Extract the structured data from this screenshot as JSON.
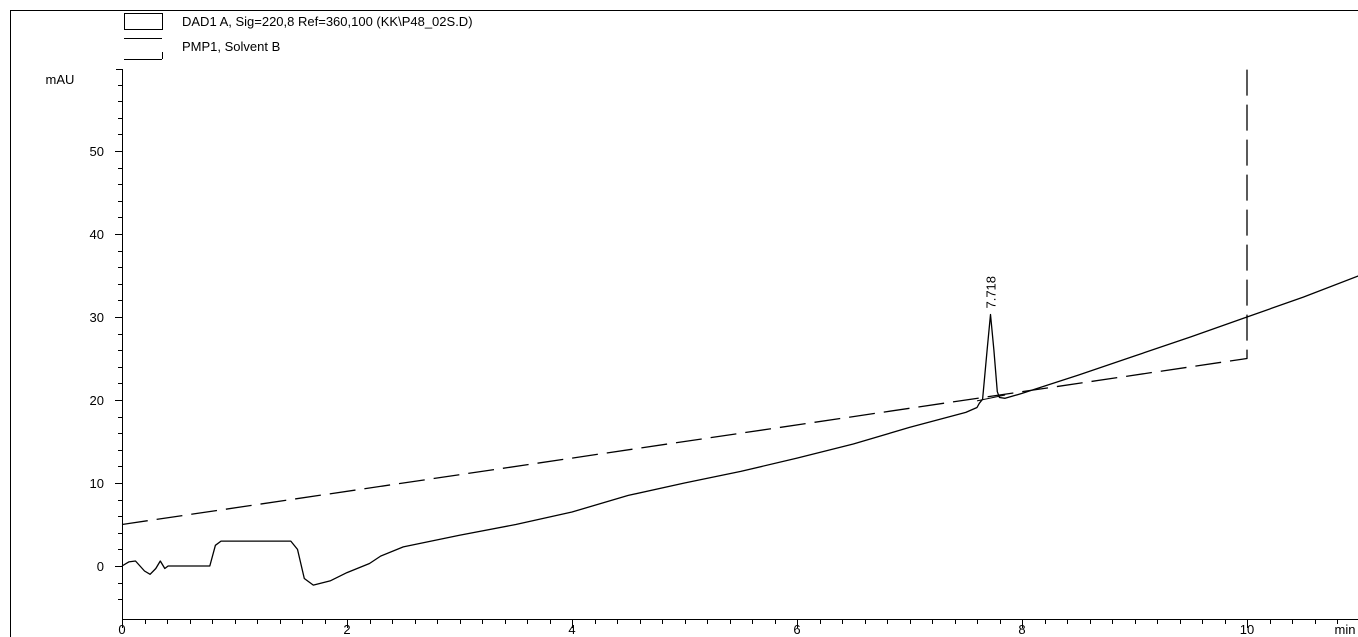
{
  "chart_data": {
    "type": "line",
    "legend": {
      "placement": "top-left",
      "entries": [
        "DAD1 A, Sig=220,8 Ref=360,100 (KK\\P48_02S.D)",
        "PMP1, Solvent B"
      ]
    },
    "ylabel": "mAU",
    "xlabel": "min",
    "xlim": [
      0,
      11
    ],
    "ylim": [
      -5,
      60
    ],
    "x_ticks": [
      "0",
      "2",
      "4",
      "6",
      "8",
      "10"
    ],
    "y_ticks": [
      "0",
      "10",
      "20",
      "30",
      "40",
      "50"
    ],
    "grid": false,
    "series": [
      {
        "name": "DAD1 A, Sig=220,8 Ref=360,100 (KK\\P48_02S.D)",
        "style": "solid",
        "color": "#000000",
        "points": [
          [
            0.0,
            0.0
          ],
          [
            0.06,
            0.5
          ],
          [
            0.12,
            0.6
          ],
          [
            0.2,
            -0.6
          ],
          [
            0.25,
            -1.0
          ],
          [
            0.3,
            -0.3
          ],
          [
            0.34,
            0.6
          ],
          [
            0.38,
            -0.3
          ],
          [
            0.41,
            0.0
          ],
          [
            0.78,
            0.0
          ],
          [
            0.83,
            2.5
          ],
          [
            0.88,
            3.0
          ],
          [
            1.5,
            3.0
          ],
          [
            1.56,
            2.0
          ],
          [
            1.62,
            -1.5
          ],
          [
            1.7,
            -2.3
          ],
          [
            1.85,
            -1.8
          ],
          [
            2.0,
            -0.8
          ],
          [
            2.2,
            0.3
          ],
          [
            2.3,
            1.2
          ],
          [
            2.5,
            2.3
          ],
          [
            3.0,
            3.7
          ],
          [
            3.5,
            5.0
          ],
          [
            4.0,
            6.5
          ],
          [
            4.5,
            8.5
          ],
          [
            5.0,
            10.0
          ],
          [
            5.5,
            11.4
          ],
          [
            6.0,
            13.0
          ],
          [
            6.5,
            14.7
          ],
          [
            7.0,
            16.7
          ],
          [
            7.5,
            18.5
          ],
          [
            7.6,
            19.1
          ],
          [
            7.62,
            19.6
          ],
          [
            7.65,
            20.1
          ],
          [
            7.69,
            26.0
          ],
          [
            7.72,
            30.3
          ],
          [
            7.75,
            26.0
          ],
          [
            7.78,
            21.0
          ],
          [
            7.8,
            20.3
          ],
          [
            7.85,
            20.2
          ],
          [
            8.0,
            20.8
          ],
          [
            8.5,
            23.0
          ],
          [
            9.0,
            25.3
          ],
          [
            9.5,
            27.6
          ],
          [
            10.0,
            30.0
          ],
          [
            10.5,
            32.4
          ],
          [
            11.0,
            35.0
          ]
        ]
      },
      {
        "name": "PMP1, Solvent B",
        "style": "dashed",
        "color": "#000000",
        "points": [
          [
            0.0,
            5.0
          ],
          [
            10.0,
            25.0
          ],
          [
            10.0,
            60.0
          ]
        ]
      }
    ],
    "integration_baseline": [
      [
        7.6,
        19.9
      ],
      [
        7.85,
        20.6
      ]
    ],
    "annotations": [
      {
        "text": "7.718",
        "x": 7.718,
        "y": 30.3,
        "rotation": "vertical"
      }
    ]
  }
}
